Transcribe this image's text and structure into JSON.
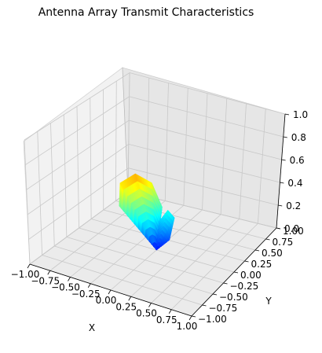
{
  "chart_data": {
    "type": "surface3d",
    "title": "Antenna Array Transmit Characteristics",
    "xlabel": "X",
    "ylabel": "Y",
    "zlabel": "",
    "xlim": [
      -1.0,
      1.0
    ],
    "ylim": [
      -1.0,
      1.0
    ],
    "zlim": [
      0.0,
      1.0
    ],
    "xticks": [
      "−1.00",
      "−0.75",
      "−0.50",
      "−0.25",
      "0.00",
      "0.25",
      "0.50",
      "0.75",
      "1.00"
    ],
    "yticks": [
      "−1.00",
      "−0.75",
      "−0.50",
      "−0.25",
      "0.00",
      "0.25",
      "0.50",
      "0.75",
      "1.00"
    ],
    "zticks": [
      "0.0",
      "0.2",
      "0.4",
      "0.6",
      "0.8",
      "1.0"
    ],
    "colormap": "jet",
    "grid": true,
    "lobes": [
      {
        "points": [
          {
            "x": 0.0,
            "y": 0.0,
            "z": 0.0
          },
          {
            "x": -0.45,
            "y": -0.05,
            "z": 0.3
          },
          {
            "x": -0.5,
            "y": 0.05,
            "z": 0.45
          },
          {
            "x": -0.4,
            "y": 0.2,
            "z": 0.5
          },
          {
            "x": -0.25,
            "y": 0.3,
            "z": 0.42
          },
          {
            "x": -0.1,
            "y": 0.28,
            "z": 0.25
          },
          {
            "x": 0.0,
            "y": 0.0,
            "z": 0.0
          }
        ]
      },
      {
        "points": [
          {
            "x": 0.0,
            "y": 0.0,
            "z": 0.0
          },
          {
            "x": -0.1,
            "y": 0.22,
            "z": 0.15
          },
          {
            "x": -0.05,
            "y": 0.32,
            "z": 0.22
          },
          {
            "x": 0.05,
            "y": 0.3,
            "z": 0.18
          },
          {
            "x": 0.08,
            "y": 0.15,
            "z": 0.05
          },
          {
            "x": 0.0,
            "y": 0.0,
            "z": 0.0
          }
        ]
      }
    ]
  }
}
